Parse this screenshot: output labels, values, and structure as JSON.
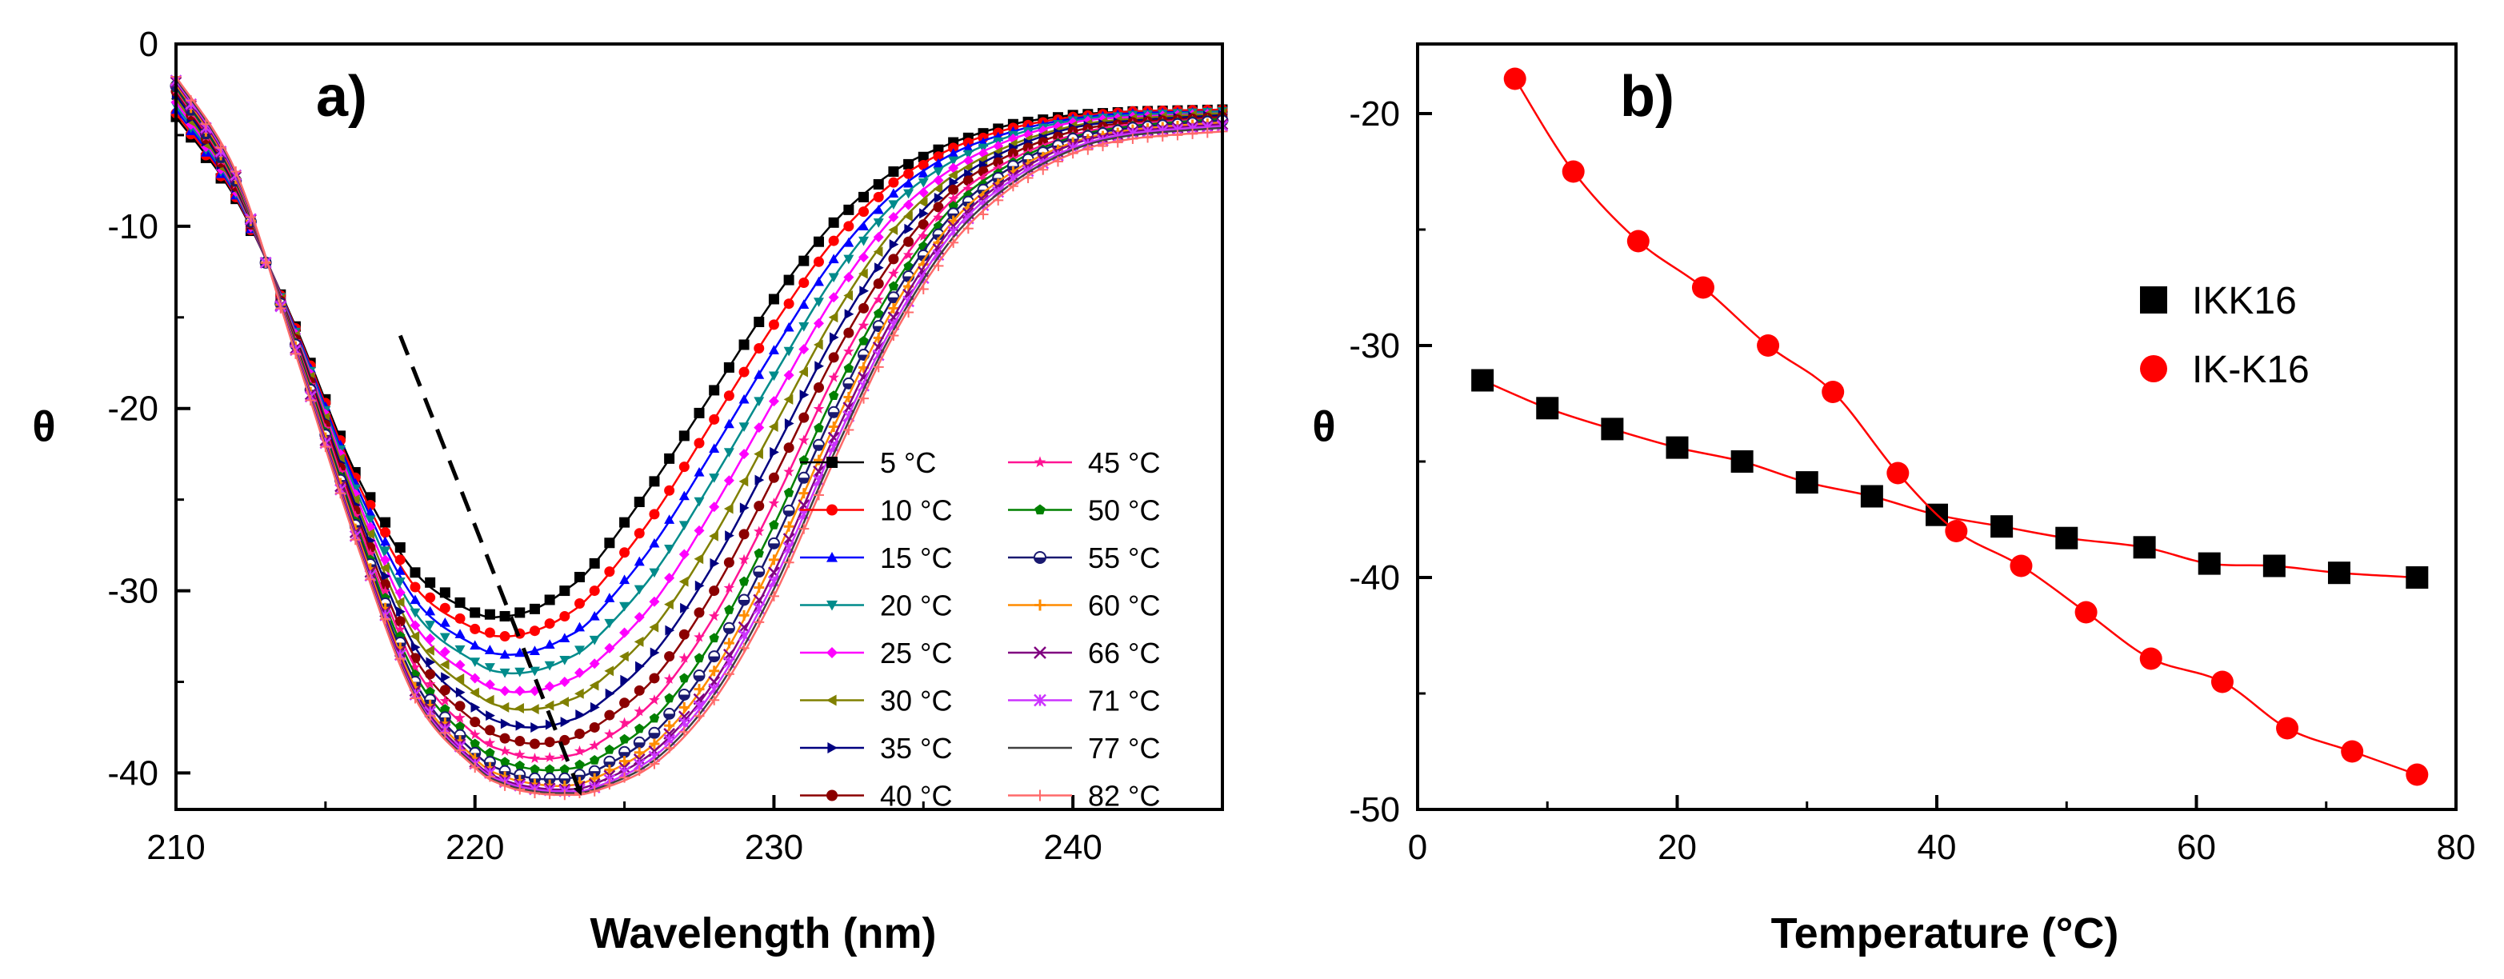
{
  "chart_data": [
    {
      "panel": "a)",
      "type": "line",
      "xlabel": "Wavelength (nm)",
      "ylabel": "θ",
      "xlim": [
        210,
        245
      ],
      "ylim": [
        -42,
        0
      ],
      "xticks": [
        210,
        220,
        230,
        240
      ],
      "yticks": [
        0,
        -10,
        -20,
        -30,
        -40
      ],
      "legend_position": "bottom-right",
      "arrow_annotation": {
        "from": [
          217.5,
          -16
        ],
        "to": [
          223.5,
          -41
        ]
      },
      "wavelengths": [
        210,
        212,
        214,
        216,
        218,
        220,
        221,
        222,
        223,
        224,
        226,
        228,
        230,
        232,
        234,
        236,
        238,
        240,
        242,
        245
      ],
      "series": [
        {
          "name": "5 °C",
          "color": "#000000",
          "marker": "square",
          "values": [
            -4.0,
            -8.5,
            -15.5,
            -23.5,
            -29.0,
            -31.2,
            -31.4,
            -31.0,
            -30.0,
            -28.5,
            -24.0,
            -19.0,
            -14.0,
            -9.8,
            -7.0,
            -5.4,
            -4.4,
            -3.9,
            -3.7,
            -3.6
          ]
        },
        {
          "name": "10 °C",
          "color": "#ff0000",
          "marker": "circle",
          "values": [
            -3.8,
            -8.4,
            -15.6,
            -23.8,
            -29.8,
            -32.1,
            -32.5,
            -32.2,
            -31.4,
            -30.0,
            -25.8,
            -20.6,
            -15.4,
            -10.8,
            -7.6,
            -5.7,
            -4.6,
            -4.0,
            -3.7,
            -3.6
          ]
        },
        {
          "name": "15 °C",
          "color": "#0000ff",
          "marker": "triangle-up",
          "values": [
            -3.6,
            -8.3,
            -15.7,
            -24.1,
            -30.5,
            -33.0,
            -33.5,
            -33.3,
            -32.6,
            -31.4,
            -27.4,
            -22.2,
            -16.8,
            -11.8,
            -8.2,
            -6.0,
            -4.8,
            -4.1,
            -3.8,
            -3.7
          ]
        },
        {
          "name": "20 °C",
          "color": "#008b8b",
          "marker": "triangle-down",
          "values": [
            -3.4,
            -8.2,
            -15.8,
            -24.4,
            -31.2,
            -33.9,
            -34.5,
            -34.4,
            -33.8,
            -32.7,
            -29.0,
            -23.8,
            -18.2,
            -12.8,
            -8.8,
            -6.4,
            -5.0,
            -4.2,
            -3.9,
            -3.7
          ]
        },
        {
          "name": "25 °C",
          "color": "#ff00ff",
          "marker": "diamond",
          "values": [
            -3.2,
            -8.1,
            -15.9,
            -24.7,
            -31.9,
            -34.8,
            -35.5,
            -35.5,
            -35.0,
            -34.0,
            -30.6,
            -25.4,
            -19.6,
            -13.9,
            -9.5,
            -6.8,
            -5.2,
            -4.3,
            -4.0,
            -3.8
          ]
        },
        {
          "name": "30 °C",
          "color": "#808000",
          "marker": "triangle-left",
          "values": [
            -3.0,
            -8.0,
            -16.0,
            -25.0,
            -32.5,
            -35.6,
            -36.4,
            -36.5,
            -36.1,
            -35.2,
            -32.0,
            -27.0,
            -21.0,
            -15.0,
            -10.2,
            -7.2,
            -5.5,
            -4.5,
            -4.1,
            -3.8
          ]
        },
        {
          "name": "35 °C",
          "color": "#000080",
          "marker": "triangle-right",
          "values": [
            -2.8,
            -7.9,
            -16.1,
            -25.3,
            -33.1,
            -36.4,
            -37.3,
            -37.5,
            -37.2,
            -36.4,
            -33.4,
            -28.5,
            -22.4,
            -16.1,
            -11.0,
            -7.6,
            -5.7,
            -4.6,
            -4.2,
            -3.9
          ]
        },
        {
          "name": "40 °C",
          "color": "#8b0000",
          "marker": "circle",
          "values": [
            -2.6,
            -7.8,
            -16.2,
            -25.6,
            -33.7,
            -37.2,
            -38.1,
            -38.4,
            -38.2,
            -37.5,
            -34.8,
            -30.0,
            -23.8,
            -17.2,
            -11.8,
            -8.0,
            -6.0,
            -4.8,
            -4.3,
            -4.0
          ]
        },
        {
          "name": "45 °C",
          "color": "#ff1493",
          "marker": "star",
          "values": [
            -2.5,
            -7.7,
            -16.3,
            -25.9,
            -34.2,
            -37.9,
            -38.8,
            -39.2,
            -39.1,
            -38.5,
            -36.0,
            -31.4,
            -25.2,
            -18.3,
            -12.6,
            -8.5,
            -6.3,
            -5.0,
            -4.4,
            -4.1
          ]
        },
        {
          "name": "50 °C",
          "color": "#008000",
          "marker": "pentagon",
          "values": [
            -2.4,
            -7.6,
            -16.4,
            -26.2,
            -34.6,
            -38.4,
            -39.4,
            -39.8,
            -39.8,
            -39.3,
            -37.0,
            -32.6,
            -26.4,
            -19.3,
            -13.3,
            -8.9,
            -6.5,
            -5.1,
            -4.5,
            -4.1
          ]
        },
        {
          "name": "55 °C",
          "color": "#191970",
          "marker": "half-circle",
          "values": [
            -2.3,
            -7.5,
            -16.5,
            -26.4,
            -35.0,
            -38.9,
            -39.9,
            -40.3,
            -40.3,
            -39.9,
            -37.8,
            -33.6,
            -27.4,
            -20.2,
            -13.9,
            -9.3,
            -6.7,
            -5.2,
            -4.6,
            -4.2
          ]
        },
        {
          "name": "60 °C",
          "color": "#ff8c00",
          "marker": "plus",
          "values": [
            -2.2,
            -7.4,
            -16.6,
            -26.6,
            -35.3,
            -39.2,
            -40.2,
            -40.6,
            -40.7,
            -40.3,
            -38.4,
            -34.4,
            -28.3,
            -21.0,
            -14.5,
            -9.7,
            -7.0,
            -5.4,
            -4.7,
            -4.3
          ]
        },
        {
          "name": "66 °C",
          "color": "#800080",
          "marker": "cross",
          "values": [
            -2.1,
            -7.3,
            -16.7,
            -26.8,
            -35.5,
            -39.4,
            -40.4,
            -40.8,
            -40.9,
            -40.6,
            -38.8,
            -35.0,
            -29.0,
            -21.6,
            -15.0,
            -10.0,
            -7.2,
            -5.5,
            -4.8,
            -4.4
          ]
        },
        {
          "name": "71 °C",
          "color": "#cc33ff",
          "marker": "asterisk",
          "values": [
            -2.0,
            -7.2,
            -16.8,
            -27.0,
            -35.7,
            -39.5,
            -40.5,
            -40.9,
            -41.0,
            -40.8,
            -39.1,
            -35.4,
            -29.5,
            -22.1,
            -15.4,
            -10.3,
            -7.4,
            -5.7,
            -4.9,
            -4.5
          ]
        },
        {
          "name": "77 °C",
          "color": "#404040",
          "marker": "none",
          "values": [
            -1.9,
            -7.1,
            -16.9,
            -27.1,
            -35.8,
            -39.6,
            -40.6,
            -41.0,
            -41.1,
            -40.9,
            -39.3,
            -35.7,
            -29.9,
            -22.5,
            -15.7,
            -10.6,
            -7.6,
            -5.8,
            -5.0,
            -4.6
          ]
        },
        {
          "name": "82 °C",
          "color": "#ff6a6a",
          "marker": "plus-thin",
          "values": [
            -1.8,
            -7.0,
            -17.0,
            -27.2,
            -35.9,
            -39.7,
            -40.7,
            -41.1,
            -41.2,
            -41.0,
            -39.5,
            -36.0,
            -30.3,
            -22.9,
            -16.0,
            -10.9,
            -7.8,
            -6.0,
            -5.2,
            -4.8
          ]
        }
      ]
    },
    {
      "panel": "b)",
      "type": "scatter",
      "xlabel": "Temperature (°C)",
      "ylabel": "θ",
      "xlim": [
        0,
        80
      ],
      "ylim": [
        -50,
        -17
      ],
      "xticks": [
        0,
        20,
        40,
        60,
        80
      ],
      "yticks": [
        -20,
        -30,
        -40,
        -50
      ],
      "legend_position": "right",
      "series": [
        {
          "name": "IKK16",
          "color": "#000000",
          "marker": "square",
          "fit_color": "#ff0000",
          "x": [
            5,
            10,
            15,
            20,
            25,
            30,
            35,
            40,
            45,
            50,
            56,
            61,
            66,
            71,
            77
          ],
          "y": [
            -31.5,
            -32.7,
            -33.6,
            -34.4,
            -35.0,
            -35.9,
            -36.5,
            -37.3,
            -37.8,
            -38.3,
            -38.7,
            -39.4,
            -39.5,
            -39.8,
            -40.0
          ]
        },
        {
          "name": "IK-K16",
          "color": "#ff0000",
          "marker": "circle",
          "fit_color": "#ff0000",
          "x": [
            7.5,
            12,
            17,
            22,
            27,
            32,
            37,
            41.5,
            46.5,
            51.5,
            56.5,
            62,
            67,
            72,
            77
          ],
          "y": [
            -18.5,
            -22.5,
            -25.5,
            -27.5,
            -30.0,
            -32.0,
            -35.5,
            -38.0,
            -39.5,
            -41.5,
            -43.5,
            -44.5,
            -46.5,
            -47.5,
            -48.5
          ]
        }
      ]
    }
  ]
}
